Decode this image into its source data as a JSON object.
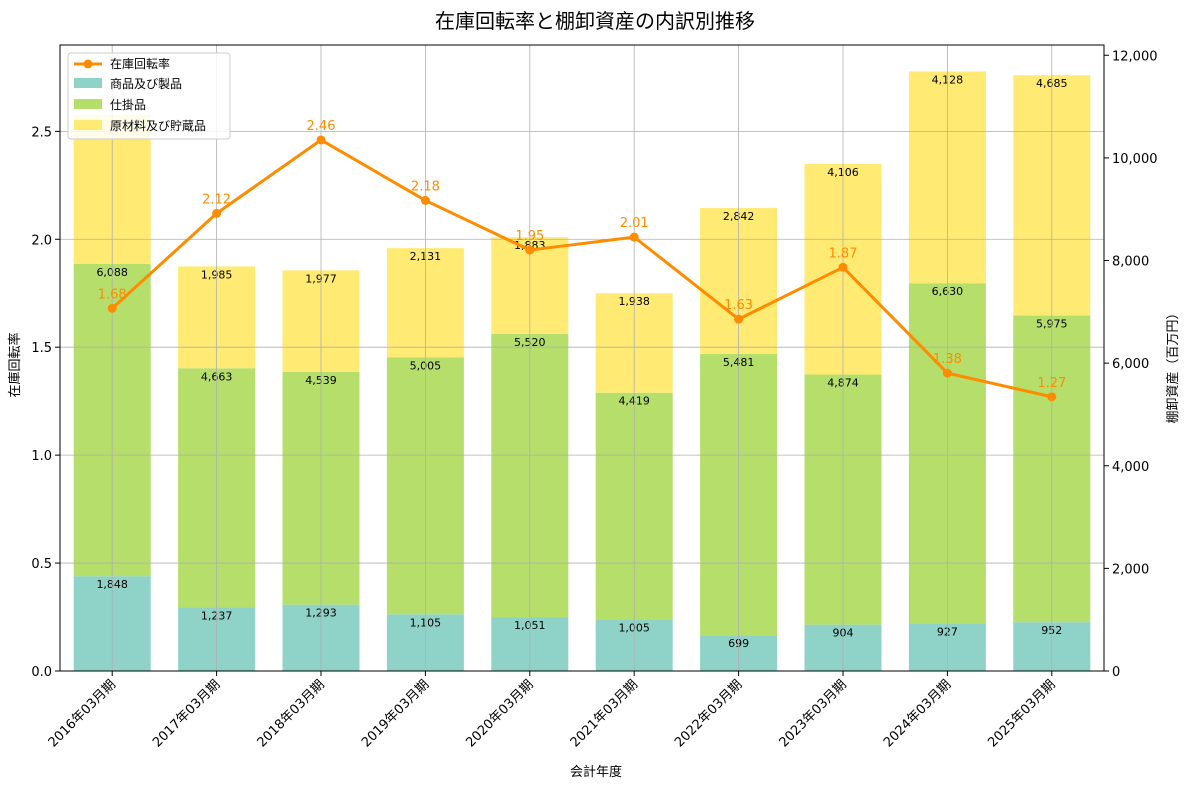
{
  "colors": {
    "products": "#8FD3C8",
    "wip": "#B5DE6B",
    "materials": "#FFEB73",
    "rate": "#FF8C00",
    "grid": "#b0b0b0"
  },
  "chart_data": {
    "type": "bar",
    "title": "在庫回転率と棚卸資産の内訳別推移",
    "xlabel": "会計年度",
    "ylabel_left": "在庫回転率",
    "ylabel_right": "棚卸資産（百万円）",
    "categories": [
      "2016年03月期",
      "2017年03月期",
      "2018年03月期",
      "2019年03月期",
      "2020年03月期",
      "2021年03月期",
      "2022年03月期",
      "2023年03月期",
      "2024年03月期",
      "2025年03月期"
    ],
    "stacked": true,
    "series": [
      {
        "name": "商品及び製品",
        "color": "#8FD3C8",
        "values": [
          1848,
          1237,
          1293,
          1105,
          1051,
          1005,
          699,
          904,
          927,
          952
        ],
        "labels": [
          "1,848",
          "1,237",
          "1,293",
          "1,105",
          "1,051",
          "1,005",
          "699",
          "904",
          "927",
          "952"
        ]
      },
      {
        "name": "仕掛品",
        "color": "#B5DE6B",
        "values": [
          6088,
          4663,
          4539,
          5005,
          5520,
          4419,
          5481,
          4874,
          6630,
          5975
        ],
        "labels": [
          "6,088",
          "4,663",
          "4,539",
          "5,005",
          "5,520",
          "4,419",
          "5,481",
          "4,874",
          "6,630",
          "5,975"
        ]
      },
      {
        "name": "原材料及び貯蔵品",
        "color": "#FFEB73",
        "values": [
          2900,
          1985,
          1977,
          2131,
          1883,
          1938,
          2842,
          4106,
          4128,
          4685
        ],
        "labels": [
          "",
          "1,985",
          "1,977",
          "2,131",
          "1,883",
          "1,938",
          "2,842",
          "4,106",
          "4,128",
          "4,685"
        ]
      }
    ],
    "line": {
      "name": "在庫回転率",
      "color": "#FF8C00",
      "values": [
        1.68,
        2.12,
        2.46,
        2.18,
        1.95,
        2.01,
        1.63,
        1.87,
        1.38,
        1.27
      ],
      "labels": [
        "1.68",
        "2.12",
        "2.46",
        "2.18",
        "1.95",
        "2.01",
        "1.63",
        "1.87",
        "1.38",
        "1.27"
      ]
    },
    "ylim_left": [
      0,
      2.9
    ],
    "ylim_right": [
      0,
      12200
    ],
    "yticks_left": [
      "0.0",
      "0.5",
      "1.0",
      "1.5",
      "2.0",
      "2.5"
    ],
    "yticks_left_values": [
      0,
      0.5,
      1.0,
      1.5,
      2.0,
      2.5
    ],
    "yticks_right": [
      "0",
      "2,000",
      "4,000",
      "6,000",
      "8,000",
      "10,000",
      "12,000"
    ],
    "yticks_right_values": [
      0,
      2000,
      4000,
      6000,
      8000,
      10000,
      12000
    ],
    "grid": true,
    "legend": "top-left"
  }
}
